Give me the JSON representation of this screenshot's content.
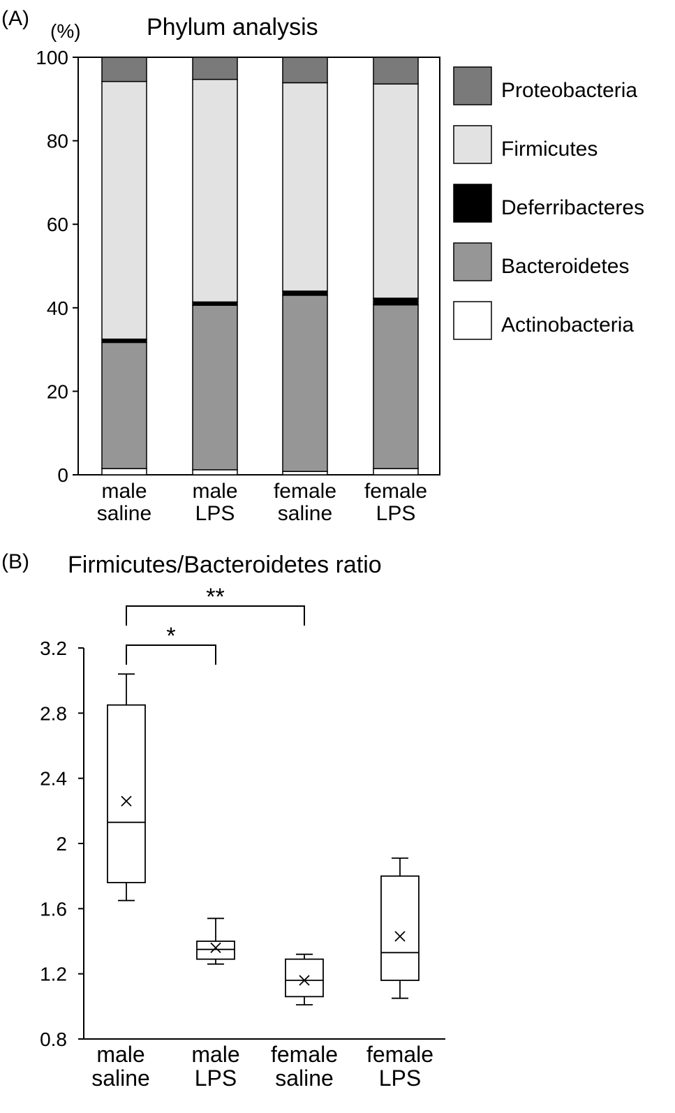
{
  "panel_a": {
    "label": "(A)",
    "unit": "(%)",
    "chart_data": {
      "type": "bar",
      "stacked": true,
      "title": "Phylum analysis",
      "categories": [
        "male\nsaline",
        "male\nLPS",
        "female\nsaline",
        "female\nLPS"
      ],
      "ylim": [
        0,
        100
      ],
      "yticks": [
        "0",
        "20",
        "40",
        "60",
        "80",
        "100"
      ],
      "legend_position": "right",
      "series": [
        {
          "name": "Actinobacteria",
          "color": "#ffffff",
          "values": [
            1.5,
            1.2,
            0.8,
            1.5
          ]
        },
        {
          "name": "Bacteroidetes",
          "color": "#969696",
          "values": [
            30.2,
            39.4,
            42.2,
            39.2
          ]
        },
        {
          "name": "Deferribacteres",
          "color": "#000000",
          "values": [
            0.8,
            0.8,
            1.0,
            1.6
          ]
        },
        {
          "name": "Firmicutes",
          "color": "#e2e2e2",
          "values": [
            61.7,
            53.3,
            49.9,
            51.3
          ]
        },
        {
          "name": "Proteobacteria",
          "color": "#7a7a7a",
          "values": [
            5.8,
            5.3,
            6.1,
            6.4
          ]
        }
      ],
      "legend_order": [
        "Proteobacteria",
        "Firmicutes",
        "Deferribacteres",
        "Bacteroidetes",
        "Actinobacteria"
      ]
    }
  },
  "panel_b": {
    "label": "(B)",
    "chart_data": {
      "type": "box",
      "title": "Firmicutes/Bacteroidetes ratio",
      "categories": [
        "male\nsaline",
        "male\nLPS",
        "female\nsaline",
        "female\nLPS"
      ],
      "ylim": [
        0.8,
        3.2
      ],
      "yticks": [
        "0.8",
        "1.2",
        "1.6",
        "2",
        "2.4",
        "2.8",
        "3.2"
      ],
      "boxes": [
        {
          "min": 1.65,
          "q1": 1.76,
          "median": 2.13,
          "q3": 2.85,
          "max": 3.04,
          "mean": 2.26
        },
        {
          "min": 1.26,
          "q1": 1.29,
          "median": 1.35,
          "q3": 1.4,
          "max": 1.54,
          "mean": 1.36
        },
        {
          "min": 1.01,
          "q1": 1.06,
          "median": 1.16,
          "q3": 1.29,
          "max": 1.32,
          "mean": 1.16
        },
        {
          "min": 1.05,
          "q1": 1.16,
          "median": 1.33,
          "q3": 1.8,
          "max": 1.91,
          "mean": 1.43
        }
      ],
      "significance": [
        {
          "from": 0,
          "to": 1,
          "label": "*"
        },
        {
          "from": 0,
          "to": 2,
          "label": "**"
        }
      ]
    }
  }
}
